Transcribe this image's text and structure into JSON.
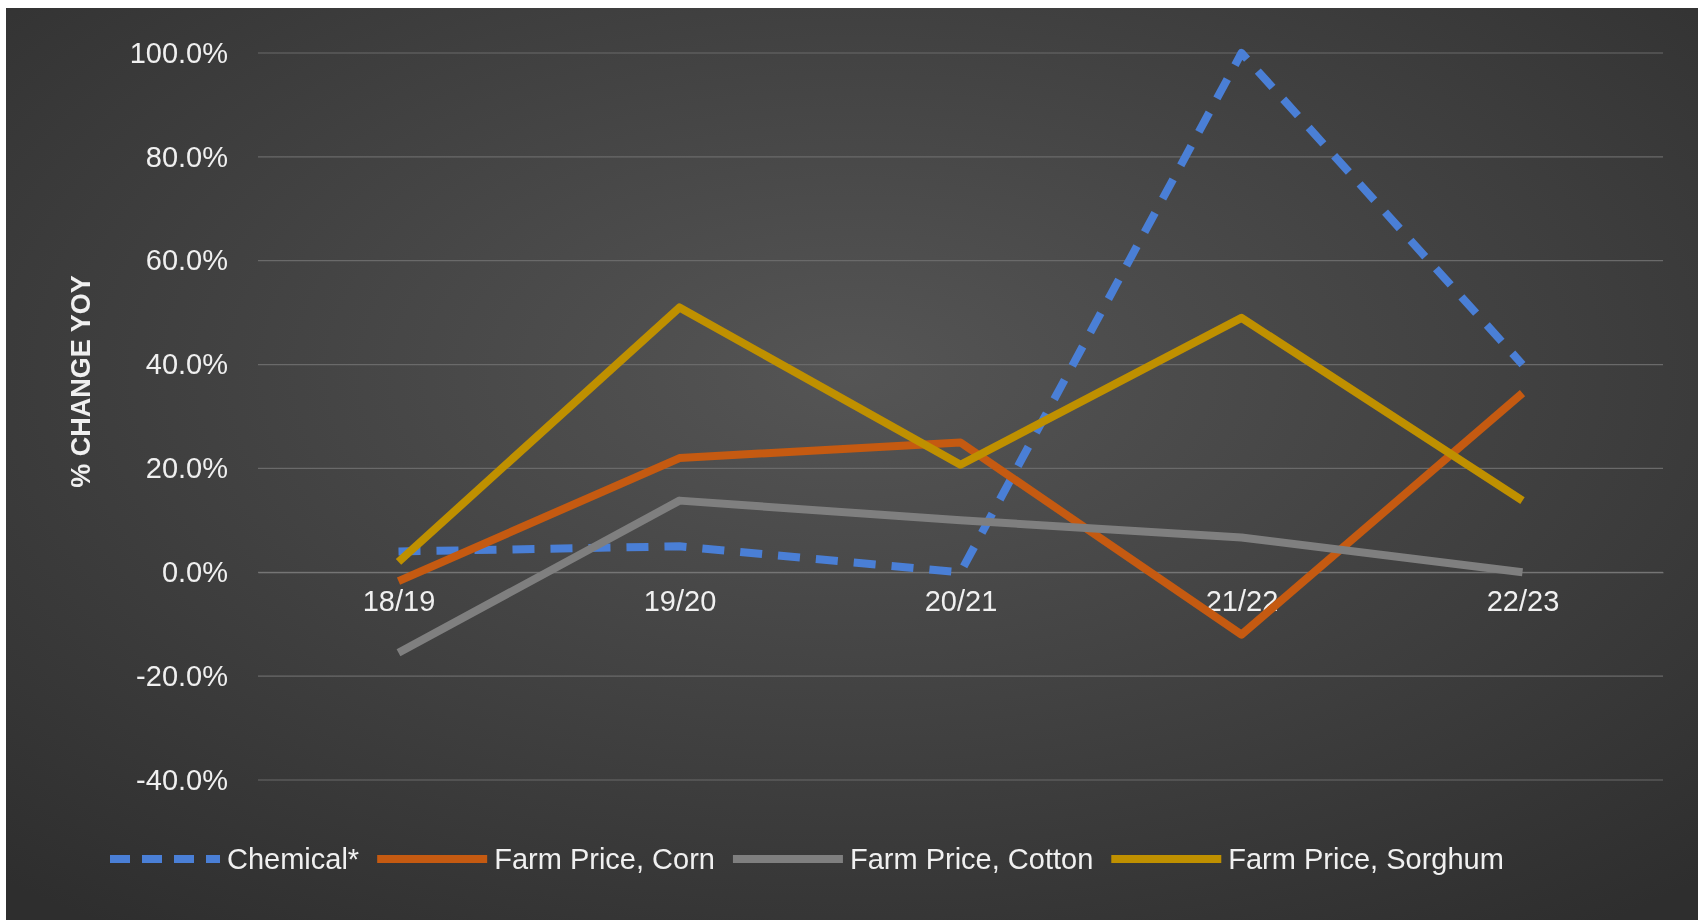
{
  "chart_data": {
    "type": "line",
    "ylabel": "% CHANGE YOY",
    "categories": [
      "18/19",
      "19/20",
      "20/21",
      "21/22",
      "22/23"
    ],
    "series": [
      {
        "name": "Chemical*",
        "color": "#4a7fd6",
        "line_style": "dashed",
        "values": [
          4,
          5,
          0,
          100,
          40
        ]
      },
      {
        "name": "Farm Price, Corn",
        "color": "#c55a11",
        "values": [
          -1.7,
          22,
          25,
          -12,
          34.5
        ]
      },
      {
        "name": "Farm Price, Cotton",
        "color": "#7f7f7f",
        "values": [
          -15.5,
          13.8,
          10,
          6.7,
          0
        ]
      },
      {
        "name": "Farm Price, Sorghum",
        "color": "#bf9000",
        "values": [
          2,
          51,
          20.7,
          49,
          13.8
        ]
      }
    ],
    "ylim": [
      -40,
      100
    ],
    "yticks": [
      {
        "value": -40,
        "label": "-40.0%"
      },
      {
        "value": -20,
        "label": "-20.0%"
      },
      {
        "value": 0,
        "label": "0.0%"
      },
      {
        "value": 20,
        "label": "20.0%"
      },
      {
        "value": 40,
        "label": "40.0%"
      },
      {
        "value": 60,
        "label": "60.0%"
      },
      {
        "value": 80,
        "label": "80.0%"
      },
      {
        "value": 100,
        "label": "100.0%"
      }
    ],
    "grid": "y",
    "legend": "bottom",
    "line_style": "solid",
    "marker": "none"
  }
}
